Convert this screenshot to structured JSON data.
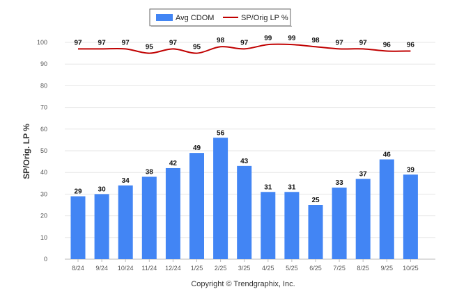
{
  "chart_data": {
    "type": "bar",
    "categories": [
      "8/24",
      "9/24",
      "10/24",
      "11/24",
      "12/24",
      "1/25",
      "2/25",
      "3/25",
      "4/25",
      "5/25",
      "6/25",
      "7/25",
      "8/25",
      "9/25",
      "10/25"
    ],
    "series": [
      {
        "name": "Avg CDOM",
        "type": "bar",
        "color": "#4285f4",
        "values": [
          29,
          30,
          34,
          38,
          42,
          49,
          56,
          43,
          31,
          31,
          25,
          33,
          37,
          46,
          39
        ]
      },
      {
        "name": "SP/Orig LP %",
        "type": "line",
        "color": "#c00000",
        "values": [
          97,
          97,
          97,
          95,
          97,
          95,
          98,
          97,
          99,
          99,
          98,
          97,
          97,
          96,
          96
        ]
      }
    ],
    "ylabel": "SP/Orig. LP %",
    "ylim": [
      0,
      100
    ],
    "yticks": [
      0,
      10,
      20,
      30,
      40,
      50,
      60,
      70,
      80,
      90,
      100
    ],
    "grid": true,
    "legend_position": "top-center",
    "footer": "Copyright © Trendgraphix, Inc."
  }
}
